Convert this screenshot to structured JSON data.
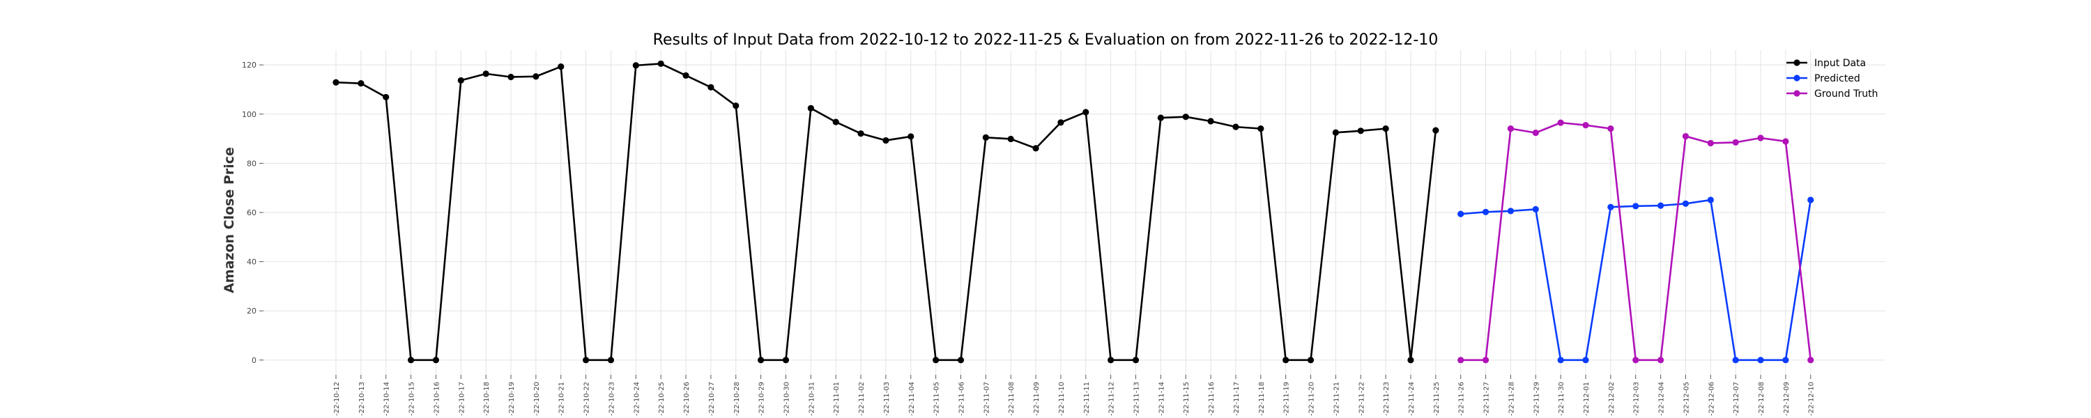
{
  "chart_data": {
    "type": "line",
    "title": "Results of Input Data from 2022-10-12 to 2022-11-25 & Evaluation on from 2022-11-26 to 2022-12-10",
    "xlabel": "",
    "ylabel": "Amazon Close Price",
    "ylim": [
      -6,
      126
    ],
    "y_ticks": [
      0,
      20,
      40,
      60,
      80,
      100,
      120
    ],
    "grid": true,
    "legend_position": "top-right",
    "categories": [
      "2022-10-12",
      "2022-10-13",
      "2022-10-14",
      "2022-10-15",
      "2022-10-16",
      "2022-10-17",
      "2022-10-18",
      "2022-10-19",
      "2022-10-20",
      "2022-10-21",
      "2022-10-22",
      "2022-10-23",
      "2022-10-24",
      "2022-10-25",
      "2022-10-26",
      "2022-10-27",
      "2022-10-28",
      "2022-10-29",
      "2022-10-30",
      "2022-10-31",
      "2022-11-01",
      "2022-11-02",
      "2022-11-03",
      "2022-11-04",
      "2022-11-05",
      "2022-11-06",
      "2022-11-07",
      "2022-11-08",
      "2022-11-09",
      "2022-11-10",
      "2022-11-11",
      "2022-11-12",
      "2022-11-13",
      "2022-11-14",
      "2022-11-15",
      "2022-11-16",
      "2022-11-17",
      "2022-11-18",
      "2022-11-19",
      "2022-11-20",
      "2022-11-21",
      "2022-11-22",
      "2022-11-23",
      "2022-11-24",
      "2022-11-25",
      "2022-11-26",
      "2022-11-27",
      "2022-11-28",
      "2022-11-29",
      "2022-11-30",
      "2022-12-01",
      "2022-12-02",
      "2022-12-03",
      "2022-12-04",
      "2022-12-05",
      "2022-12-06",
      "2022-12-07",
      "2022-12-08",
      "2022-12-09",
      "2022-12-10"
    ],
    "tick_labels": [
      "-22-10-12",
      "-22-10-13",
      "-22-10-14",
      "-22-10-15",
      "-22-10-16",
      "-22-10-17",
      "-22-10-18",
      "-22-10-19",
      "-22-10-20",
      "-22-10-21",
      "-22-10-22",
      "-22-10-23",
      "-22-10-24",
      "-22-10-25",
      "-22-10-26",
      "-22-10-27",
      "-22-10-28",
      "-22-10-29",
      "-22-10-30",
      "-22-10-31",
      "-22-11-01",
      "-22-11-02",
      "-22-11-03",
      "-22-11-04",
      "-22-11-05",
      "-22-11-06",
      "-22-11-07",
      "-22-11-08",
      "-22-11-09",
      "-22-11-10",
      "-22-11-11",
      "-22-11-12",
      "-22-11-13",
      "-22-11-14",
      "-22-11-15",
      "-22-11-16",
      "-22-11-17",
      "-22-11-18",
      "-22-11-19",
      "-22-11-20",
      "-22-11-21",
      "-22-11-22",
      "-22-11-23",
      "-22-11-24",
      "-22-11-25",
      "-22-11-26",
      "-22-11-27",
      "-22-11-28",
      "-22-11-29",
      "-22-11-30",
      "-22-12-01",
      "-22-12-02",
      "-22-12-03",
      "-22-12-04",
      "-22-12-05",
      "-22-12-06",
      "-22-12-07",
      "-22-12-08",
      "-22-12-09",
      "-22-12-10"
    ],
    "series": [
      {
        "name": "Input Data",
        "color": "#000000",
        "x": [
          "2022-10-12",
          "2022-10-13",
          "2022-10-14",
          "2022-10-15",
          "2022-10-16",
          "2022-10-17",
          "2022-10-18",
          "2022-10-19",
          "2022-10-20",
          "2022-10-21",
          "2022-10-22",
          "2022-10-23",
          "2022-10-24",
          "2022-10-25",
          "2022-10-26",
          "2022-10-27",
          "2022-10-28",
          "2022-10-29",
          "2022-10-30",
          "2022-10-31",
          "2022-11-01",
          "2022-11-02",
          "2022-11-03",
          "2022-11-04",
          "2022-11-05",
          "2022-11-06",
          "2022-11-07",
          "2022-11-08",
          "2022-11-09",
          "2022-11-10",
          "2022-11-11",
          "2022-11-12",
          "2022-11-13",
          "2022-11-14",
          "2022-11-15",
          "2022-11-16",
          "2022-11-17",
          "2022-11-18",
          "2022-11-19",
          "2022-11-20",
          "2022-11-21",
          "2022-11-22",
          "2022-11-23",
          "2022-11-24",
          "2022-11-25"
        ],
        "values": [
          112.9,
          112.5,
          106.9,
          0,
          0,
          113.7,
          116.4,
          115.1,
          115.3,
          119.3,
          0,
          0,
          119.8,
          120.5,
          115.7,
          110.9,
          103.4,
          0,
          0,
          102.4,
          96.8,
          92.1,
          89.3,
          90.9,
          0,
          0,
          90.5,
          89.9,
          86.1,
          96.6,
          100.8,
          0,
          0,
          98.5,
          98.9,
          97.1,
          94.8,
          94.1,
          0,
          0,
          92.5,
          93.2,
          94.1,
          0,
          93.4
        ]
      },
      {
        "name": "Predicted",
        "color": "#0a3cff",
        "x": [
          "2022-11-26",
          "2022-11-27",
          "2022-11-28",
          "2022-11-29",
          "2022-11-30",
          "2022-12-01",
          "2022-12-02",
          "2022-12-03",
          "2022-12-04",
          "2022-12-05",
          "2022-12-06",
          "2022-12-07",
          "2022-12-08",
          "2022-12-09",
          "2022-12-10"
        ],
        "values": [
          59.4,
          60.2,
          60.6,
          61.3,
          0,
          0,
          62.2,
          62.6,
          62.8,
          63.6,
          65.1,
          0,
          0,
          0,
          65.1
        ]
      },
      {
        "name": "Ground Truth",
        "color": "#b012b8",
        "x": [
          "2022-11-26",
          "2022-11-27",
          "2022-11-28",
          "2022-11-29",
          "2022-11-30",
          "2022-12-01",
          "2022-12-02",
          "2022-12-03",
          "2022-12-04",
          "2022-12-05",
          "2022-12-06",
          "2022-12-07",
          "2022-12-08",
          "2022-12-09",
          "2022-12-10"
        ],
        "values": [
          0,
          0,
          94.1,
          92.4,
          96.5,
          95.5,
          94.1,
          0,
          0,
          91.0,
          88.2,
          88.5,
          90.3,
          88.9,
          0
        ]
      }
    ]
  }
}
